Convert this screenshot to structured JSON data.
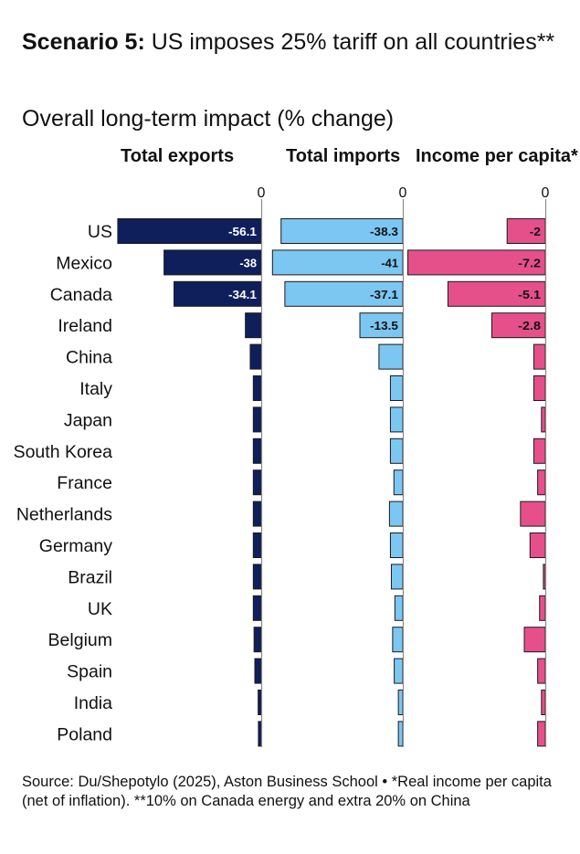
{
  "title": {
    "bold": "Scenario 5:",
    "rest": " US imposes 25% tariff on all countries**"
  },
  "subtitle": "Overall long-term impact (% change)",
  "source": "Source: Du/Shepotylo (2025), Aston Business School • *Real income per capita (net of inflation). **10% on Canada energy and extra 20% on China",
  "colors": {
    "exports": "#0f1f5c",
    "imports": "#7cc6f2",
    "income": "#e6508a",
    "bar_border": "#1a1a1a"
  },
  "chart_data": {
    "type": "bar",
    "orientation": "horizontal",
    "categories": [
      "US",
      "Mexico",
      "Canada",
      "Ireland",
      "China",
      "Italy",
      "Japan",
      "South Korea",
      "France",
      "Netherlands",
      "Germany",
      "Brazil",
      "UK",
      "Belgium",
      "Spain",
      "India",
      "Poland"
    ],
    "zero_label": "0",
    "series": [
      {
        "name": "Total exports",
        "key": "exports",
        "values": [
          -56.1,
          -38,
          -34.1,
          -6.2,
          -4.3,
          -3.1,
          -3.1,
          -3.1,
          -3.1,
          -3.1,
          -3.1,
          -3.1,
          -3.1,
          -2.8,
          -2.5,
          -1.2,
          -1.1
        ],
        "value_labels": [
          "-56.1",
          "-38",
          "-34.1",
          "",
          "",
          "",
          "",
          "",
          "",
          "",
          "",
          "",
          "",
          "",
          "",
          "",
          ""
        ]
      },
      {
        "name": "Total imports",
        "key": "imports",
        "values": [
          -38.3,
          -41,
          -37.1,
          -13.5,
          -7.5,
          -3.9,
          -3.9,
          -3.9,
          -2.8,
          -4.2,
          -3.9,
          -3.6,
          -2.5,
          -3.2,
          -2.7,
          -1.4,
          -1.4
        ],
        "value_labels": [
          "-38.3",
          "-41",
          "-37.1",
          "-13.5",
          "",
          "",
          "",
          "",
          "",
          "",
          "",
          "",
          "",
          "",
          "",
          "",
          ""
        ]
      },
      {
        "name": "Income per capita*",
        "key": "income",
        "values": [
          -2,
          -7.2,
          -5.1,
          -2.8,
          -0.6,
          -0.6,
          -0.2,
          -0.6,
          -0.4,
          -1.3,
          -0.8,
          -0.1,
          -0.3,
          -1.1,
          -0.4,
          -0.2,
          -0.4
        ],
        "value_labels": [
          "-2",
          "-7.2",
          "-5.1",
          "-2.8",
          "",
          "",
          "",
          "",
          "",
          "",
          "",
          "",
          "",
          "",
          "",
          "",
          ""
        ]
      }
    ]
  }
}
